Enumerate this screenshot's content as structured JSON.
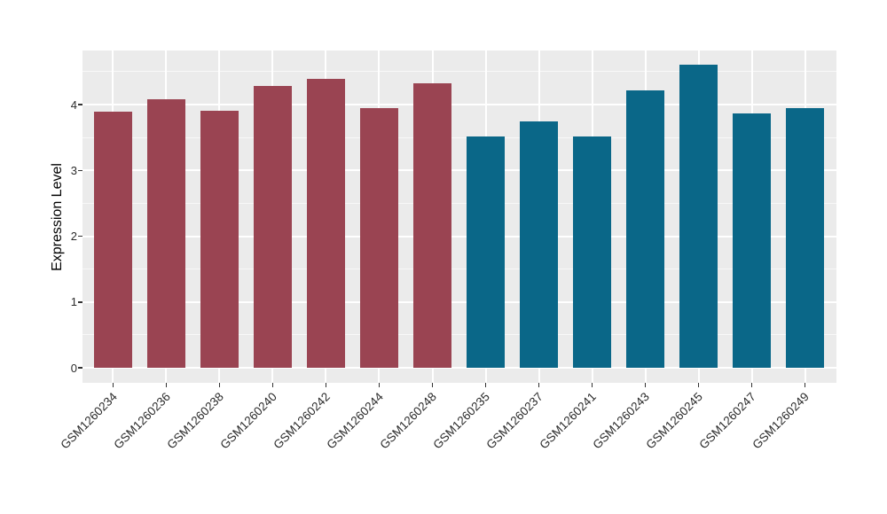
{
  "figure": {
    "background": "#FFFFFF",
    "panel_background": "#EBEBEB",
    "gridline_color": "#FFFFFF",
    "tick_color": "#333333",
    "text_color": "#2b2b2b"
  },
  "chart_data": {
    "type": "bar",
    "title": "",
    "xlabel": "",
    "ylabel": "Expression Level",
    "categories": [
      "GSM1260234",
      "GSM1260236",
      "GSM1260238",
      "GSM1260240",
      "GSM1260242",
      "GSM1260244",
      "GSM1260248",
      "GSM1260235",
      "GSM1260237",
      "GSM1260241",
      "GSM1260243",
      "GSM1260245",
      "GSM1260247",
      "GSM1260249"
    ],
    "values": [
      3.89,
      4.08,
      3.9,
      4.28,
      4.39,
      3.94,
      4.33,
      3.51,
      3.74,
      3.51,
      4.21,
      4.6,
      3.86,
      3.95
    ],
    "bar_colors": [
      "#9A4452",
      "#9A4452",
      "#9A4452",
      "#9A4452",
      "#9A4452",
      "#9A4452",
      "#9A4452",
      "#0A6788",
      "#0A6788",
      "#0A6788",
      "#0A6788",
      "#0A6788",
      "#0A6788",
      "#0A6788"
    ],
    "group_colors": {
      "left_group": "#9A4452",
      "right_group": "#0A6788"
    },
    "yticks": [
      0,
      1,
      2,
      3,
      4
    ],
    "ytick_labels": [
      "0",
      "1",
      "2",
      "3",
      "4"
    ],
    "ylim": [
      -0.23,
      4.82
    ],
    "grid": true,
    "legend": "none",
    "x_label_angle_deg": 45
  }
}
